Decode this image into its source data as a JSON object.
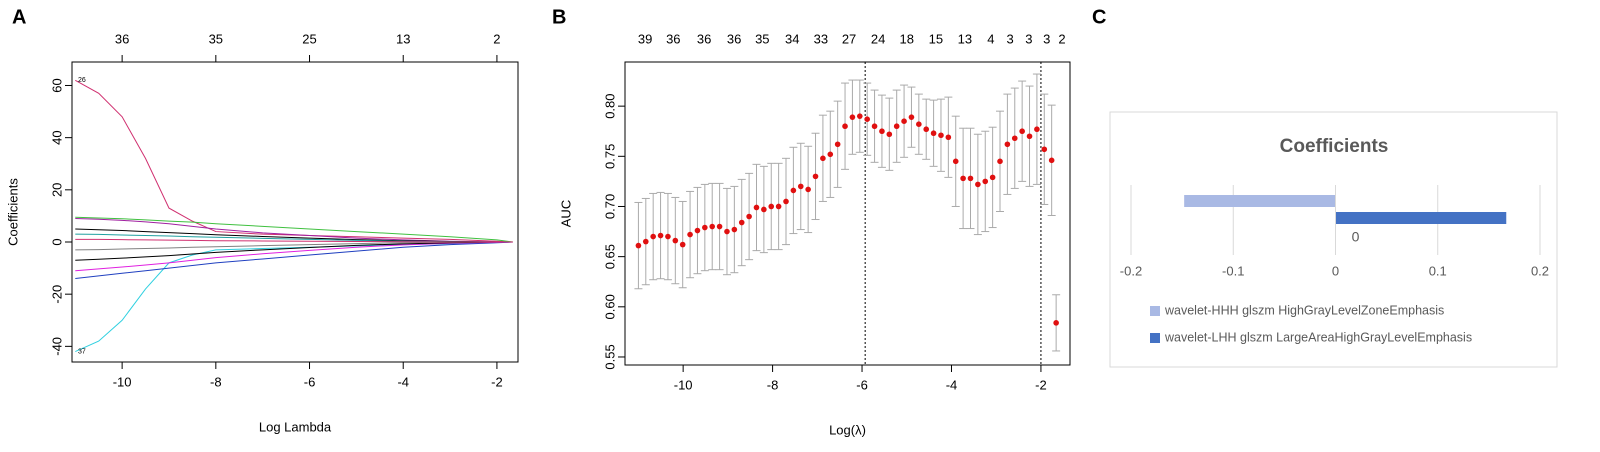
{
  "chart_data": [
    {
      "type": "line",
      "panel": "A",
      "xlabel": "Log Lambda",
      "ylabel": "Coefficients",
      "xlim": [
        -11.07,
        -1.55
      ],
      "ylim": [
        -46,
        69
      ],
      "xticks": [
        -10,
        -8,
        -6,
        -4,
        -2
      ],
      "yticks": [
        -40,
        -20,
        0,
        20,
        40,
        60
      ],
      "top_ticks": [
        {
          "value": -10,
          "label": "36"
        },
        {
          "value": -8,
          "label": "35"
        },
        {
          "value": -6,
          "label": "25"
        },
        {
          "value": -4,
          "label": "13"
        },
        {
          "value": -2,
          "label": "2"
        }
      ],
      "x": [
        -11,
        -10.5,
        -10,
        -9.5,
        -9,
        -8.5,
        -8,
        -7,
        -6,
        -5,
        -4,
        -3,
        -2,
        -1.66
      ],
      "series": [
        {
          "name": "26",
          "color": "#d03070",
          "values": [
            62,
            57,
            48,
            32,
            13,
            8,
            4,
            3,
            2.5,
            2,
            1.5,
            1,
            0.3,
            0
          ]
        },
        {
          "name": "37",
          "color": "#30d0e0",
          "values": [
            -42,
            -38,
            -30,
            -18,
            -8,
            -5,
            -3,
            -2.5,
            -2,
            -1.5,
            -1,
            -0.6,
            -0.2,
            0
          ]
        },
        {
          "color": "#40c040",
          "values": [
            9.5,
            9.2,
            8.9,
            8.5,
            8,
            7.6,
            7,
            6,
            5,
            4,
            3,
            2,
            0.8,
            0
          ]
        },
        {
          "color": "#a020a0",
          "values": [
            9,
            8.7,
            8.3,
            7.7,
            7,
            6,
            5,
            3.5,
            2.5,
            1.5,
            0.8,
            0.3,
            0,
            0
          ]
        },
        {
          "color": "#2040c0",
          "values": [
            -14,
            -13,
            -12,
            -11,
            -10,
            -9,
            -8,
            -6.5,
            -5,
            -3.5,
            -2,
            -1,
            -0.3,
            0
          ]
        },
        {
          "color": "#e020e0",
          "values": [
            -11,
            -10.3,
            -9.6,
            -8.8,
            -8,
            -7,
            -6,
            -4.5,
            -3.2,
            -2,
            -1.1,
            -0.5,
            -0.1,
            0
          ]
        },
        {
          "color": "#000000",
          "values": [
            -7,
            -6.6,
            -6.2,
            -5.7,
            -5.2,
            -4.6,
            -4,
            -3,
            -2.1,
            -1.3,
            -0.7,
            -0.3,
            0,
            0
          ]
        },
        {
          "color": "#000000",
          "values": [
            5,
            4.7,
            4.4,
            4,
            3.6,
            3.2,
            2.8,
            2.1,
            1.5,
            0.9,
            0.5,
            0.2,
            0,
            0
          ]
        },
        {
          "color": "#20a0a0",
          "values": [
            3,
            2.9,
            2.7,
            2.5,
            2.3,
            2,
            1.8,
            1.4,
            1,
            0.6,
            0.3,
            0.1,
            0,
            0
          ]
        },
        {
          "color": "#808080",
          "values": [
            -3,
            -2.9,
            -2.7,
            -2.5,
            -2.3,
            -2,
            -1.8,
            -1.4,
            -1,
            -0.6,
            -0.3,
            -0.1,
            0,
            0
          ]
        },
        {
          "color": "#d03070",
          "values": [
            1,
            1,
            0.9,
            0.8,
            0.7,
            0.6,
            0.5,
            0.4,
            0.3,
            0.2,
            0.1,
            0,
            0,
            0
          ]
        }
      ]
    },
    {
      "type": "scatter",
      "panel": "B",
      "xlabel": "Log(λ)",
      "ylabel": "AUC",
      "xlim": [
        -11.3,
        -1.35
      ],
      "ylim": [
        0.542,
        0.844
      ],
      "xticks": [
        -10,
        -8,
        -6,
        -4,
        -2
      ],
      "yticks": [
        0.55,
        {
          "value": 0.6,
          "label": "0.60"
        },
        0.65,
        {
          "value": 0.7,
          "label": "0.70"
        },
        0.75,
        {
          "value": 0.8,
          "label": "0.80"
        }
      ],
      "top_ticks": [
        {
          "value": -10.85,
          "label": "39"
        },
        {
          "value": -10.22,
          "label": "36"
        },
        {
          "value": -9.53,
          "label": "36"
        },
        {
          "value": -8.86,
          "label": "36"
        },
        {
          "value": -8.23,
          "label": "35"
        },
        {
          "value": -7.56,
          "label": "34"
        },
        {
          "value": -6.92,
          "label": "33"
        },
        {
          "value": -6.29,
          "label": "27"
        },
        {
          "value": -5.64,
          "label": "24"
        },
        {
          "value": -5.0,
          "label": "18"
        },
        {
          "value": -4.35,
          "label": "15"
        },
        {
          "value": -3.7,
          "label": "13"
        },
        {
          "value": -3.12,
          "label": "4"
        },
        {
          "value": -2.69,
          "label": "3"
        },
        {
          "value": -2.27,
          "label": "3"
        },
        {
          "value": -1.87,
          "label": "3"
        },
        {
          "value": -1.53,
          "label": "2"
        }
      ],
      "vlines": [
        -5.93,
        -2.0
      ],
      "color": "#e01010",
      "error_color": "#aaaaaa",
      "x": [
        -11.0,
        -10.835,
        -10.67,
        -10.505,
        -10.34,
        -10.175,
        -10.01,
        -9.845,
        -9.68,
        -9.515,
        -9.35,
        -9.185,
        -9.02,
        -8.855,
        -8.69,
        -8.525,
        -8.36,
        -8.195,
        -8.03,
        -7.865,
        -7.7,
        -7.535,
        -7.37,
        -7.205,
        -7.04,
        -6.875,
        -6.71,
        -6.545,
        -6.38,
        -6.215,
        -6.05,
        -5.885,
        -5.72,
        -5.555,
        -5.39,
        -5.225,
        -5.06,
        -4.895,
        -4.73,
        -4.565,
        -4.4,
        -4.235,
        -4.07,
        -3.905,
        -3.74,
        -3.575,
        -3.41,
        -3.245,
        -3.08,
        -2.915,
        -2.75,
        -2.585,
        -2.42,
        -2.255,
        -2.09,
        -1.925,
        -1.76,
        -1.66
      ],
      "values": [
        0.661,
        0.665,
        0.67,
        0.671,
        0.67,
        0.666,
        0.662,
        0.672,
        0.676,
        0.679,
        0.68,
        0.68,
        0.675,
        0.677,
        0.684,
        0.69,
        0.699,
        0.697,
        0.7,
        0.7,
        0.705,
        0.716,
        0.72,
        0.717,
        0.73,
        0.748,
        0.752,
        0.762,
        0.78,
        0.789,
        0.79,
        0.787,
        0.78,
        0.775,
        0.772,
        0.78,
        0.785,
        0.789,
        0.782,
        0.777,
        0.773,
        0.771,
        0.769,
        0.745,
        0.728,
        0.728,
        0.722,
        0.725,
        0.729,
        0.745,
        0.762,
        0.768,
        0.775,
        0.77,
        0.777,
        0.757,
        0.746,
        0.584
      ],
      "errors": [
        0.043,
        0.043,
        0.043,
        0.043,
        0.043,
        0.043,
        0.043,
        0.043,
        0.043,
        0.043,
        0.043,
        0.043,
        0.043,
        0.043,
        0.043,
        0.043,
        0.043,
        0.043,
        0.043,
        0.043,
        0.043,
        0.043,
        0.043,
        0.043,
        0.043,
        0.043,
        0.043,
        0.043,
        0.043,
        0.037,
        0.036,
        0.036,
        0.036,
        0.036,
        0.036,
        0.036,
        0.036,
        0.03,
        0.03,
        0.03,
        0.033,
        0.036,
        0.04,
        0.045,
        0.05,
        0.05,
        0.05,
        0.05,
        0.05,
        0.05,
        0.05,
        0.05,
        0.05,
        0.05,
        0.055,
        0.055,
        0.055,
        0.028
      ]
    },
    {
      "type": "bar",
      "panel": "C",
      "title": "Coefficients",
      "categories": [
        "0"
      ],
      "xlim": [
        -0.2,
        0.2
      ],
      "xticks": [
        -0.2,
        -0.1,
        0,
        0.1,
        0.2
      ],
      "grid": true,
      "series": [
        {
          "name": "wavelet-HHH glszm HighGrayLevelZoneEmphasis",
          "color": "#a9b9e4",
          "values": [
            -0.148
          ]
        },
        {
          "name": "wavelet-LHH glszm LargeAreaHighGrayLevelEmphasis",
          "color": "#4472c4",
          "values": [
            0.167
          ]
        }
      ]
    }
  ]
}
